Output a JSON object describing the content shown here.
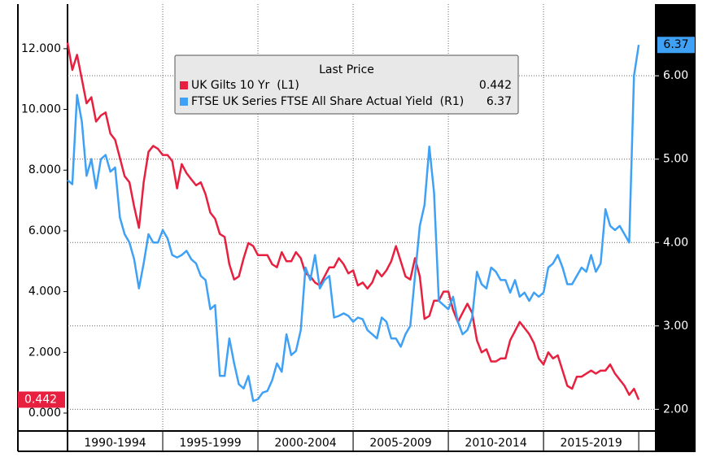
{
  "chart_data": {
    "type": "line",
    "legend_title": "Last Price",
    "x": [
      1990,
      1990.25,
      1990.5,
      1990.75,
      1991,
      1991.25,
      1991.5,
      1991.75,
      1992,
      1992.25,
      1992.5,
      1992.75,
      1993,
      1993.25,
      1993.5,
      1993.75,
      1994,
      1994.25,
      1994.5,
      1994.75,
      1995,
      1995.25,
      1995.5,
      1995.75,
      1996,
      1996.25,
      1996.5,
      1996.75,
      1997,
      1997.25,
      1997.5,
      1997.75,
      1998,
      1998.25,
      1998.5,
      1998.75,
      1999,
      1999.25,
      1999.5,
      1999.75,
      2000,
      2000.25,
      2000.5,
      2000.75,
      2001,
      2001.25,
      2001.5,
      2001.75,
      2002,
      2002.25,
      2002.5,
      2002.75,
      2003,
      2003.25,
      2003.5,
      2003.75,
      2004,
      2004.25,
      2004.5,
      2004.75,
      2005,
      2005.25,
      2005.5,
      2005.75,
      2006,
      2006.25,
      2006.5,
      2006.75,
      2007,
      2007.25,
      2007.5,
      2007.75,
      2008,
      2008.25,
      2008.5,
      2008.75,
      2009,
      2009.25,
      2009.5,
      2009.75,
      2010,
      2010.25,
      2010.5,
      2010.75,
      2011,
      2011.25,
      2011.5,
      2011.75,
      2012,
      2012.25,
      2012.5,
      2012.75,
      2013,
      2013.25,
      2013.5,
      2013.75,
      2014,
      2014.25,
      2014.5,
      2014.75,
      2015,
      2015.25,
      2015.5,
      2015.75,
      2016,
      2016.25,
      2016.5,
      2016.75,
      2017,
      2017.25,
      2017.5,
      2017.75,
      2018,
      2018.25,
      2018.5,
      2018.75,
      2019,
      2019.25,
      2019.5,
      2019.75,
      2020
    ],
    "series": [
      {
        "name": "UK Gilts 10 Yr  (L1)",
        "color": "#e8203f",
        "axis": "y",
        "values": [
          12.2,
          11.3,
          11.8,
          11.0,
          10.2,
          10.4,
          9.6,
          9.8,
          9.9,
          9.2,
          9.0,
          8.4,
          7.8,
          7.6,
          6.8,
          6.1,
          7.6,
          8.6,
          8.8,
          8.7,
          8.5,
          8.5,
          8.3,
          7.4,
          8.2,
          7.9,
          7.7,
          7.5,
          7.6,
          7.2,
          6.6,
          6.4,
          5.9,
          5.8,
          4.9,
          4.4,
          4.5,
          5.1,
          5.6,
          5.5,
          5.2,
          5.2,
          5.2,
          4.9,
          4.8,
          5.3,
          5.0,
          5.0,
          5.3,
          5.1,
          4.6,
          4.5,
          4.3,
          4.2,
          4.5,
          4.8,
          4.8,
          5.1,
          4.9,
          4.6,
          4.7,
          4.2,
          4.3,
          4.1,
          4.3,
          4.7,
          4.5,
          4.7,
          5.0,
          5.5,
          5.0,
          4.5,
          4.4,
          5.1,
          4.5,
          3.1,
          3.2,
          3.7,
          3.7,
          4.0,
          4.0,
          3.4,
          3.0,
          3.3,
          3.6,
          3.3,
          2.4,
          2.0,
          2.1,
          1.7,
          1.7,
          1.8,
          1.8,
          2.4,
          2.7,
          3.0,
          2.8,
          2.6,
          2.3,
          1.8,
          1.6,
          2.0,
          1.8,
          1.9,
          1.4,
          0.9,
          0.8,
          1.2,
          1.2,
          1.3,
          1.4,
          1.3,
          1.4,
          1.4,
          1.6,
          1.3,
          1.1,
          0.9,
          0.6,
          0.8,
          0.442
        ]
      },
      {
        "name": "FTSE UK Series FTSE All Share Actual Yield  (R1)",
        "color": "#3fa1f5",
        "axis": "y2",
        "values": [
          4.75,
          4.7,
          5.77,
          5.45,
          4.8,
          5.0,
          4.65,
          5.0,
          5.05,
          4.85,
          4.9,
          4.3,
          4.1,
          4.0,
          3.8,
          3.45,
          3.75,
          4.1,
          4.0,
          4.0,
          4.15,
          4.05,
          3.85,
          3.82,
          3.85,
          3.9,
          3.8,
          3.75,
          3.6,
          3.55,
          3.2,
          3.25,
          2.4,
          2.4,
          2.85,
          2.55,
          2.3,
          2.25,
          2.4,
          2.1,
          2.12,
          2.2,
          2.22,
          2.35,
          2.55,
          2.45,
          2.9,
          2.65,
          2.7,
          2.95,
          3.7,
          3.55,
          3.85,
          3.45,
          3.55,
          3.6,
          3.1,
          3.12,
          3.15,
          3.12,
          3.05,
          3.1,
          3.08,
          2.95,
          2.9,
          2.85,
          3.1,
          3.05,
          2.85,
          2.85,
          2.75,
          2.9,
          3.0,
          3.6,
          4.2,
          4.45,
          5.15,
          4.6,
          3.3,
          3.25,
          3.2,
          3.35,
          3.05,
          2.9,
          2.95,
          3.1,
          3.65,
          3.5,
          3.45,
          3.7,
          3.65,
          3.55,
          3.55,
          3.4,
          3.55,
          3.35,
          3.4,
          3.3,
          3.4,
          3.35,
          3.4,
          3.7,
          3.75,
          3.85,
          3.7,
          3.5,
          3.5,
          3.6,
          3.7,
          3.65,
          3.85,
          3.65,
          3.75,
          4.4,
          4.2,
          4.15,
          4.2,
          4.1,
          4.0,
          6.0,
          6.37
        ]
      }
    ],
    "xlim": [
      1990,
      2020.85
    ],
    "periods": [
      {
        "label": "1990-1994",
        "start": 1990,
        "end": 1995
      },
      {
        "label": "1995-1999",
        "start": 1995,
        "end": 2000
      },
      {
        "label": "2000-2004",
        "start": 2000,
        "end": 2005
      },
      {
        "label": "2005-2009",
        "start": 2005,
        "end": 2010
      },
      {
        "label": "2010-2014",
        "start": 2010,
        "end": 2015
      },
      {
        "label": "2015-2019",
        "start": 2015,
        "end": 2020
      }
    ],
    "ylim": [
      -0.59,
      13.47
    ],
    "yticks": [
      {
        "value": 0,
        "label": "0.000"
      },
      {
        "value": 2,
        "label": "2.000"
      },
      {
        "value": 4,
        "label": "4.000"
      },
      {
        "value": 6,
        "label": "6.000"
      },
      {
        "value": 8,
        "label": "8.000"
      },
      {
        "value": 10,
        "label": "10.000"
      },
      {
        "value": 12,
        "label": "12.000"
      }
    ],
    "y2lim": [
      1.74,
      6.86
    ],
    "y2ticks": [
      {
        "value": 2,
        "label": "2.00"
      },
      {
        "value": 3,
        "label": "3.00"
      },
      {
        "value": 4,
        "label": "4.00"
      },
      {
        "value": 5,
        "label": "5.00"
      },
      {
        "value": 6,
        "label": "6.00"
      }
    ],
    "grid": true
  }
}
